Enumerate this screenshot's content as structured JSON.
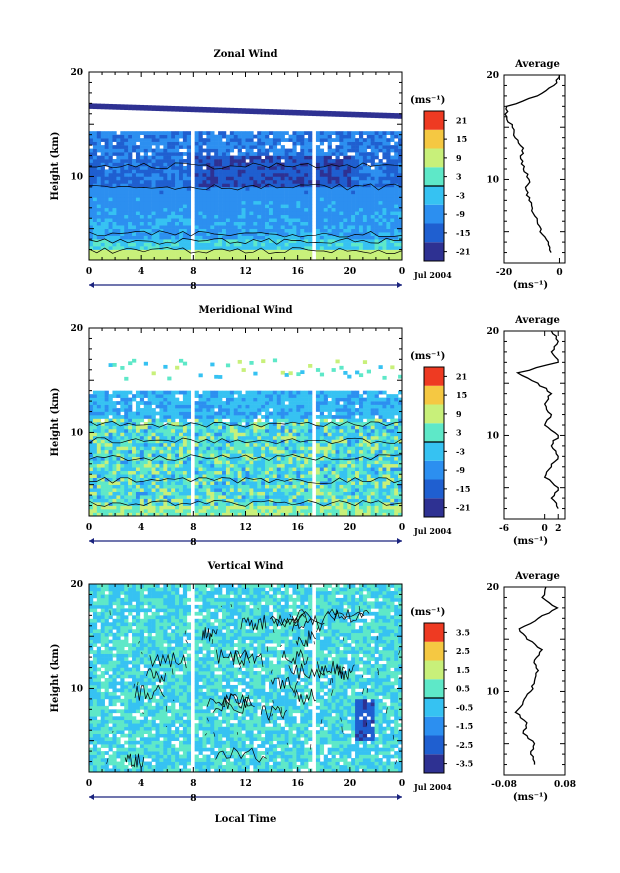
{
  "chart_data": [
    {
      "type": "heatmap",
      "title": "Zonal Wind",
      "ylabel": "Height (km)",
      "xlabel": "",
      "xlim": [
        0,
        24
      ],
      "ylim": [
        2,
        20
      ],
      "x_ticks": [
        "0",
        "4",
        "8",
        "12",
        "16",
        "20",
        "0"
      ],
      "y_ticks": [
        "20",
        "10"
      ],
      "date_marker": "8",
      "date_label": "Jul 2004",
      "colorbar": {
        "unit_label": "(ms⁻¹)",
        "tick_values": [
          "21",
          "15",
          "9",
          "3",
          "-3",
          "-9",
          "-15",
          "-21"
        ],
        "range": [
          -24,
          24
        ],
        "zero_line": true
      },
      "profile": {
        "title": "Average",
        "xlabel": "(ms⁻¹)",
        "x_ticks": [
          "-20",
          "0"
        ],
        "xlim": [
          -20,
          2
        ],
        "y_ticks": [
          "20",
          "10"
        ],
        "heights_km": [
          3,
          4,
          5,
          6,
          7,
          8,
          9,
          10,
          11,
          12,
          13,
          14,
          15,
          16,
          17,
          18,
          19,
          20
        ],
        "values": [
          -3,
          -4,
          -7,
          -8,
          -10,
          -11,
          -12,
          -11,
          -13,
          -14,
          -13,
          -16,
          -17,
          -19,
          -19,
          -8,
          -2,
          0
        ]
      }
    },
    {
      "type": "heatmap",
      "title": "Meridional Wind",
      "ylabel": "Height (km)",
      "xlabel": "",
      "xlim": [
        0,
        24
      ],
      "ylim": [
        2,
        20
      ],
      "x_ticks": [
        "0",
        "4",
        "8",
        "12",
        "16",
        "20",
        "0"
      ],
      "y_ticks": [
        "20",
        "10"
      ],
      "date_marker": "8",
      "date_label": "Jul 2004",
      "colorbar": {
        "unit_label": "(ms⁻¹)",
        "tick_values": [
          "21",
          "15",
          "9",
          "3",
          "-3",
          "-9",
          "-15",
          "-21"
        ],
        "range": [
          -24,
          24
        ],
        "zero_line": true
      },
      "profile": {
        "title": "Average",
        "xlabel": "(ms⁻¹)",
        "x_ticks": [
          "-6",
          "0",
          "2"
        ],
        "xlim": [
          -6,
          3
        ],
        "y_ticks": [
          "20",
          "10"
        ],
        "heights_km": [
          3,
          4,
          5,
          6,
          7,
          8,
          9,
          10,
          11,
          12,
          13,
          14,
          15,
          16,
          17,
          18,
          19,
          20
        ],
        "values": [
          2,
          1,
          2,
          0,
          1,
          2,
          1,
          2,
          0,
          1,
          0,
          1,
          -1,
          -4,
          2,
          1,
          2,
          1
        ]
      }
    },
    {
      "type": "heatmap",
      "title": "Vertical Wind",
      "ylabel": "Height (km)",
      "xlabel": "Local Time",
      "xlim": [
        0,
        24
      ],
      "ylim": [
        2,
        20
      ],
      "x_ticks": [
        "0",
        "4",
        "8",
        "12",
        "16",
        "20",
        "0"
      ],
      "y_ticks": [
        "20",
        "10"
      ],
      "date_marker": "8",
      "date_label": "Jul 2004",
      "colorbar": {
        "unit_label": "(ms⁻¹)",
        "tick_values": [
          "3.5",
          "2.5",
          "1.5",
          "0.5",
          "-0.5",
          "-1.5",
          "-2.5",
          "-3.5"
        ],
        "range": [
          -4,
          4
        ],
        "zero_line": true
      },
      "profile": {
        "title": "Average",
        "xlabel": "(ms⁻¹)",
        "x_ticks": [
          "-0.08",
          "0.08"
        ],
        "xlim": [
          -0.08,
          0.08
        ],
        "y_ticks": [
          "20",
          "10"
        ],
        "heights_km": [
          3,
          4,
          5,
          6,
          7,
          8,
          9,
          10,
          11,
          12,
          13,
          14,
          15,
          16,
          17,
          18,
          19,
          20
        ],
        "values": [
          0.0,
          -0.01,
          0.0,
          -0.03,
          -0.02,
          -0.05,
          -0.03,
          -0.01,
          0.0,
          0.01,
          0.0,
          0.02,
          -0.02,
          -0.04,
          0.01,
          0.06,
          0.02,
          0.03
        ]
      }
    }
  ]
}
